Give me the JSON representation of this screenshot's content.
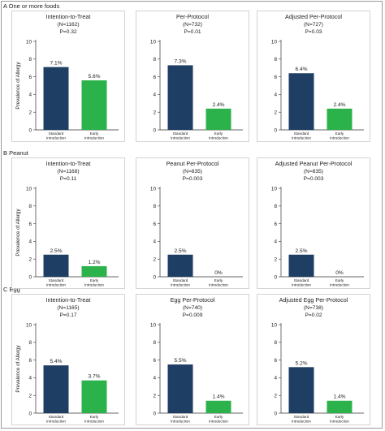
{
  "colors": {
    "standard": "#1f3e64",
    "early": "#2cb24a",
    "panel_border": "#c8c8c8",
    "axis": "#333333"
  },
  "ylabel": "Prevalence of Allergy",
  "sections": [
    {
      "label": "A  One or more foods"
    },
    {
      "label": "B  Peanut"
    },
    {
      "label": "C  Egg"
    }
  ],
  "chart_data": [
    {
      "type": "bar",
      "title": "Intention-to-Treat",
      "n": "(N=1162)",
      "p": "P=0.32",
      "categories": [
        "Standard Introduction",
        "Early Introduction"
      ],
      "category_lines": [
        [
          "Standard",
          "Introduction"
        ],
        [
          "Early",
          "Introduction"
        ]
      ],
      "values": [
        7.1,
        5.6
      ],
      "labels": [
        "7.1%",
        "5.6%"
      ],
      "ylabel": "Prevalence of Allergy",
      "ylim": [
        0,
        10
      ],
      "yticks": [
        0,
        2,
        4,
        6,
        8,
        10
      ]
    },
    {
      "type": "bar",
      "title": "Per-Protocol",
      "n": "(N=732)",
      "p": "P=0.01",
      "categories": [
        "Standard Introduction",
        "Early Introduction"
      ],
      "category_lines": [
        [
          "Standard",
          "Introduction"
        ],
        [
          "Early",
          "Introduction"
        ]
      ],
      "values": [
        7.3,
        2.4
      ],
      "labels": [
        "7.3%",
        "2.4%"
      ],
      "ylim": [
        0,
        10
      ],
      "yticks": [
        0,
        2,
        4,
        6,
        8,
        10
      ]
    },
    {
      "type": "bar",
      "title": "Adjusted Per-Protocol",
      "n": "(N=727)",
      "p": "P=0.03",
      "categories": [
        "Standard Introduction",
        "Early Introduction"
      ],
      "category_lines": [
        [
          "Standard",
          "Introduction"
        ],
        [
          "Early",
          "Introduction"
        ]
      ],
      "values": [
        6.4,
        2.4
      ],
      "labels": [
        "6.4%",
        "2.4%"
      ],
      "ylim": [
        0,
        10
      ],
      "yticks": [
        0,
        2,
        4,
        6,
        8,
        10
      ]
    },
    {
      "type": "bar",
      "title": "Intention-to-Treat",
      "n": "(N=1168)",
      "p": "P=0.11",
      "categories": [
        "Standard Introduction",
        "Early Introduction"
      ],
      "category_lines": [
        [
          "Standard",
          "Introduction"
        ],
        [
          "Early",
          "Introduction"
        ]
      ],
      "values": [
        2.5,
        1.2
      ],
      "labels": [
        "2.5%",
        "1.2%"
      ],
      "ylabel": "Prevalence of Allergy",
      "ylim": [
        0,
        10
      ],
      "yticks": [
        0,
        2,
        4,
        6,
        8,
        10
      ]
    },
    {
      "type": "bar",
      "title": "Peanut Per-Protocol",
      "n": "(N=835)",
      "p": "P=0.003",
      "categories": [
        "Standard Introduction",
        "Early Introduction"
      ],
      "category_lines": [
        [
          "Standard",
          "Introduction"
        ],
        [
          "Early",
          "Introduction"
        ]
      ],
      "values": [
        2.5,
        0
      ],
      "labels": [
        "2.5%",
        "0%"
      ],
      "ylim": [
        0,
        10
      ],
      "yticks": [
        0,
        2,
        4,
        6,
        8,
        10
      ]
    },
    {
      "type": "bar",
      "title": "Adjusted Peanut Per-Protocol",
      "n": "(N=835)",
      "p": "P=0.003",
      "categories": [
        "Standard Introduction",
        "Early Introduction"
      ],
      "category_lines": [
        [
          "Standard",
          "Introduction"
        ],
        [
          "Early",
          "Introduction"
        ]
      ],
      "values": [
        2.5,
        0
      ],
      "labels": [
        "2.5%",
        "0%"
      ],
      "ylim": [
        0,
        10
      ],
      "yticks": [
        0,
        2,
        4,
        6,
        8,
        10
      ]
    },
    {
      "type": "bar",
      "title": "Intention-to-Treat",
      "n": "(N=1165)",
      "p": "P=0.17",
      "categories": [
        "Standard Introduction",
        "Early Introduction"
      ],
      "category_lines": [
        [
          "Standard",
          "Introduction"
        ],
        [
          "Early",
          "Introduction"
        ]
      ],
      "values": [
        5.4,
        3.7
      ],
      "labels": [
        "5.4%",
        "3.7%"
      ],
      "ylabel": "Prevalence of Allergy",
      "ylim": [
        0,
        10
      ],
      "yticks": [
        0,
        2,
        4,
        6,
        8,
        10
      ]
    },
    {
      "type": "bar",
      "title": "Egg Per-Protocol",
      "n": "(N=740)",
      "p": "P=0.009",
      "categories": [
        "Standard Introduction",
        "Early Introduction"
      ],
      "category_lines": [
        [
          "Standard",
          "Introduction"
        ],
        [
          "Early",
          "Introduction"
        ]
      ],
      "values": [
        5.5,
        1.4
      ],
      "labels": [
        "5.5%",
        "1.4%"
      ],
      "ylim": [
        0,
        10
      ],
      "yticks": [
        0,
        2,
        4,
        6,
        8,
        10
      ]
    },
    {
      "type": "bar",
      "title": "Adjusted Egg Per-Protocol",
      "n": "(N=738)",
      "p": "P=0.02",
      "categories": [
        "Standard Introduction",
        "Early Introduction"
      ],
      "category_lines": [
        [
          "Standard",
          "Introduction"
        ],
        [
          "Early",
          "Introduction"
        ]
      ],
      "values": [
        5.2,
        1.4
      ],
      "labels": [
        "5.2%",
        "1.4%"
      ],
      "ylim": [
        0,
        10
      ],
      "yticks": [
        0,
        2,
        4,
        6,
        8,
        10
      ]
    }
  ]
}
